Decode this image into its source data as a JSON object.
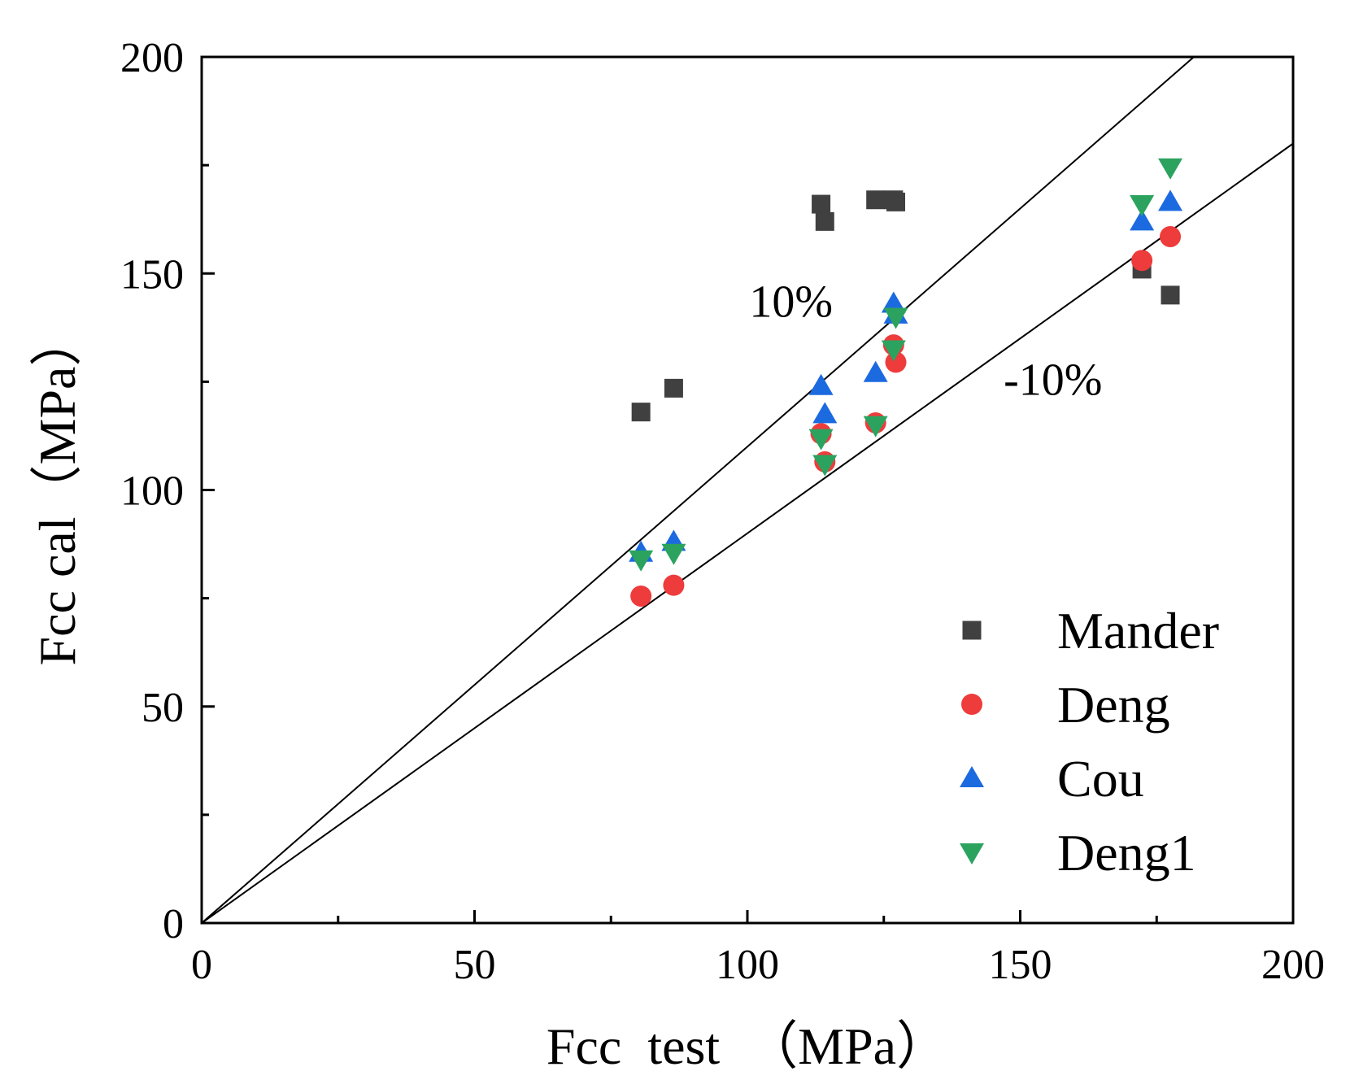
{
  "chart_data": {
    "type": "scatter",
    "title": "",
    "xlabel": "Fcc  test  （MPa）",
    "ylabel": "Fcc cal（MPa）",
    "xlim": [
      0,
      200
    ],
    "ylim": [
      0,
      200
    ],
    "xticks": [
      0,
      50,
      100,
      150,
      200
    ],
    "yticks": [
      0,
      50,
      100,
      150,
      200
    ],
    "minor_step": 25,
    "grid": false,
    "legend_position": "bottom-right",
    "reference_lines": [
      {
        "name": "plus-10",
        "label": "10%",
        "slope": 1.1,
        "label_at": [
          108,
          140
        ]
      },
      {
        "name": "minus-10",
        "label": "-10%",
        "slope": 0.9,
        "label_at": [
          156,
          122
        ]
      }
    ],
    "series": [
      {
        "name": "Mander",
        "marker": "square",
        "color": "#404040",
        "points": [
          [
            80.5,
            118
          ],
          [
            86.5,
            123.5
          ],
          [
            113.5,
            166
          ],
          [
            114.2,
            162
          ],
          [
            123.5,
            167
          ],
          [
            126.8,
            167
          ],
          [
            127.2,
            166.5
          ],
          [
            172.3,
            151
          ],
          [
            177.5,
            145
          ]
        ]
      },
      {
        "name": "Deng",
        "marker": "circle",
        "color": "#ee3b3b",
        "points": [
          [
            80.5,
            75.5
          ],
          [
            86.5,
            78
          ],
          [
            113.5,
            113
          ],
          [
            114.2,
            106.5
          ],
          [
            123.5,
            115.5
          ],
          [
            126.8,
            133.5
          ],
          [
            127.2,
            129.5
          ],
          [
            172.3,
            153
          ],
          [
            177.5,
            158.5
          ]
        ]
      },
      {
        "name": "Cou",
        "marker": "triangle-up",
        "color": "#1c6ae0",
        "points": [
          [
            80.5,
            85.5
          ],
          [
            86.5,
            88
          ],
          [
            113.5,
            124
          ],
          [
            114.2,
            117.5
          ],
          [
            123.5,
            127
          ],
          [
            126.8,
            143
          ],
          [
            127.2,
            140.5
          ],
          [
            172.3,
            162
          ],
          [
            177.5,
            166.5
          ]
        ]
      },
      {
        "name": "Deng1",
        "marker": "triangle-down",
        "color": "#2ba35f",
        "points": [
          [
            80.5,
            84
          ],
          [
            86.5,
            85.5
          ],
          [
            113.5,
            112
          ],
          [
            114.2,
            106
          ],
          [
            123.5,
            115
          ],
          [
            126.8,
            132.5
          ],
          [
            127.2,
            140
          ],
          [
            172.3,
            166
          ],
          [
            177.5,
            174.5
          ]
        ]
      }
    ]
  }
}
